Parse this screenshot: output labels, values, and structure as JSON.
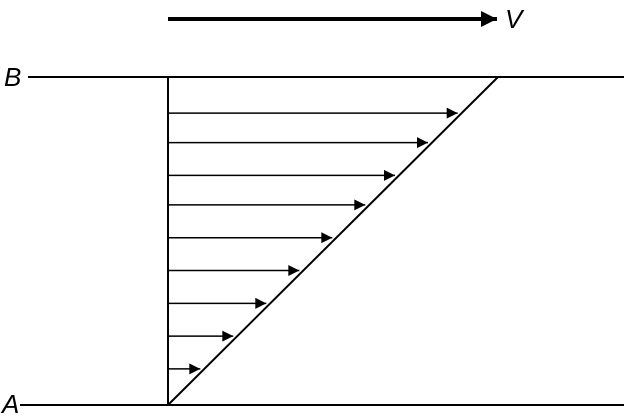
{
  "labels": {
    "velocity": "V",
    "top_plate": "B",
    "bottom_plate": "A"
  },
  "velocity_profile": {
    "type": "linear",
    "arrow_count": 9,
    "arrow_fractions_of_height": [
      0.11,
      0.21,
      0.31,
      0.41,
      0.51,
      0.61,
      0.7,
      0.8,
      0.89
    ]
  },
  "colors": {
    "stroke": "#000000",
    "background": "#ffffff"
  }
}
